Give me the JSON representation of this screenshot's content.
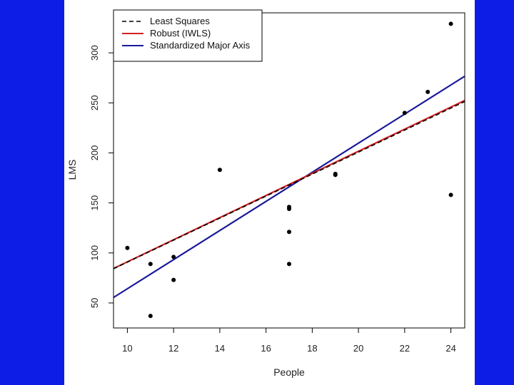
{
  "colors": {
    "background": "#0d1de6",
    "panel": "#ffffff",
    "least_squares": "#000000",
    "robust": "#d42020",
    "sma": "#1a1a9a",
    "points": "#000000"
  },
  "chart_data": {
    "type": "scatter",
    "title": "",
    "xlabel": "People",
    "ylabel": "LMS",
    "xlim": [
      9.4,
      24.6
    ],
    "ylim": [
      25,
      340
    ],
    "xticks": [
      10,
      12,
      14,
      16,
      18,
      20,
      22,
      24
    ],
    "yticks": [
      50,
      100,
      150,
      200,
      250,
      300
    ],
    "grid": false,
    "legend_position": "top-left",
    "points": [
      {
        "x": 10,
        "y": 105
      },
      {
        "x": 11,
        "y": 89
      },
      {
        "x": 11,
        "y": 37
      },
      {
        "x": 12,
        "y": 96
      },
      {
        "x": 12,
        "y": 73
      },
      {
        "x": 14,
        "y": 183
      },
      {
        "x": 17,
        "y": 146
      },
      {
        "x": 17,
        "y": 144
      },
      {
        "x": 17,
        "y": 121
      },
      {
        "x": 17,
        "y": 89
      },
      {
        "x": 19,
        "y": 179
      },
      {
        "x": 19,
        "y": 178
      },
      {
        "x": 22,
        "y": 240
      },
      {
        "x": 23,
        "y": 261
      },
      {
        "x": 24,
        "y": 329
      },
      {
        "x": 24,
        "y": 158
      }
    ],
    "series": [
      {
        "name": "Least Squares",
        "style": "dashed",
        "color": "#000000",
        "intercept": -19.2,
        "slope": 11.0
      },
      {
        "name": "Robust (IWLS)",
        "style": "solid",
        "color": "#d42020",
        "intercept": -19.4,
        "slope": 11.05
      },
      {
        "name": "Standardized Major Axis",
        "style": "solid",
        "color": "#1a1a9a",
        "intercept": -81.3,
        "slope": 14.55
      }
    ]
  }
}
